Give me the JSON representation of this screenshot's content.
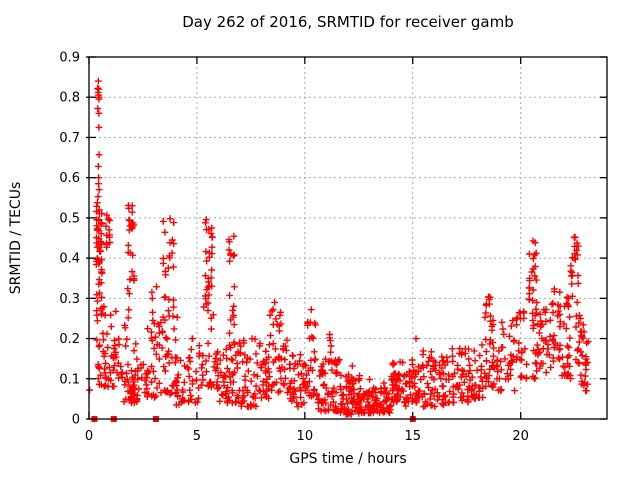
{
  "window": {
    "background": "#ffffff"
  },
  "style": {
    "marker_color": "#ff0000",
    "grid_color": "#a8a8a8",
    "border_color": "#000000",
    "text_color": "#000000"
  },
  "chart_data": {
    "type": "scatter",
    "title": "Day 262 of 2016, SRMTID for receiver gamb",
    "xlabel": "GPS time / hours",
    "ylabel": "SRMTID / TECUs",
    "xlim": [
      0,
      24
    ],
    "ylim": [
      0,
      0.9
    ],
    "grid": true,
    "legend": "none",
    "marker": "plus",
    "x_ticks": [
      0,
      5,
      10,
      15,
      20
    ],
    "y_tick_labels": [
      "0",
      "0.1",
      "0.2",
      "0.3",
      "0.4",
      "0.5",
      "0.6",
      "0.7",
      "0.8",
      "0.9"
    ],
    "y_tick_values": [
      0,
      0.1,
      0.2,
      0.3,
      0.4,
      0.5,
      0.6,
      0.7,
      0.8,
      0.9
    ],
    "seed": 1234567,
    "clusters_format": [
      "x_start_hours",
      "x_end_hours",
      "y_min_tecu",
      "y_max_tecu",
      "n_points",
      "bottom_bias_exponent",
      "n_vertical_strings"
    ],
    "clusters": [
      [
        0.32,
        0.62,
        0.36,
        0.555,
        40,
        1.0,
        3
      ],
      [
        0.32,
        0.62,
        0.15,
        0.36,
        16,
        1.0,
        3
      ],
      [
        0.3,
        0.6,
        0.07,
        0.15,
        8,
        1.0,
        0
      ],
      [
        0.75,
        1.0,
        0.42,
        0.53,
        12,
        1.0,
        2
      ],
      [
        0.6,
        1.25,
        0.08,
        0.28,
        38,
        1.8,
        0
      ],
      [
        1.25,
        1.55,
        0.1,
        0.22,
        10,
        1.3,
        0
      ],
      [
        1.78,
        2.1,
        0.42,
        0.535,
        13,
        1.0,
        2
      ],
      [
        1.75,
        2.15,
        0.26,
        0.42,
        11,
        1.0,
        2
      ],
      [
        1.6,
        2.25,
        0.04,
        0.26,
        45,
        1.8,
        0
      ],
      [
        2.25,
        2.7,
        0.05,
        0.16,
        14,
        1.3,
        0
      ],
      [
        2.7,
        3.3,
        0.05,
        0.25,
        30,
        1.7,
        0
      ],
      [
        2.85,
        3.2,
        0.25,
        0.33,
        4,
        1.0,
        0
      ],
      [
        3.4,
        4.0,
        0.26,
        0.52,
        22,
        1.0,
        3
      ],
      [
        3.3,
        4.1,
        0.06,
        0.26,
        36,
        1.6,
        0
      ],
      [
        4.0,
        4.65,
        0.03,
        0.16,
        26,
        1.5,
        0
      ],
      [
        4.65,
        5.15,
        0.04,
        0.2,
        18,
        1.5,
        0
      ],
      [
        5.35,
        5.75,
        0.28,
        0.5,
        28,
        0.9,
        3
      ],
      [
        5.2,
        5.8,
        0.08,
        0.28,
        24,
        1.5,
        0
      ],
      [
        5.8,
        6.4,
        0.04,
        0.18,
        26,
        1.4,
        0
      ],
      [
        6.45,
        6.78,
        0.2,
        0.47,
        18,
        1.0,
        2
      ],
      [
        6.3,
        7.05,
        0.04,
        0.2,
        38,
        1.6,
        0
      ],
      [
        7.05,
        8.05,
        0.03,
        0.2,
        48,
        1.7,
        0
      ],
      [
        8.05,
        8.35,
        0.05,
        0.18,
        22,
        1.5,
        0
      ],
      [
        8.35,
        8.9,
        0.06,
        0.285,
        30,
        1.4,
        0
      ],
      [
        8.9,
        9.35,
        0.05,
        0.22,
        22,
        1.5,
        0
      ],
      [
        9.35,
        10.05,
        0.03,
        0.16,
        34,
        1.6,
        0
      ],
      [
        10.05,
        10.55,
        0.05,
        0.27,
        28,
        1.8,
        0
      ],
      [
        10.55,
        11.6,
        0.02,
        0.15,
        58,
        1.6,
        0
      ],
      [
        11.05,
        11.3,
        0.14,
        0.21,
        5,
        1.0,
        0
      ],
      [
        11.6,
        12.6,
        0.01,
        0.11,
        68,
        1.5,
        0
      ],
      [
        12.6,
        14.0,
        0.015,
        0.1,
        85,
        1.6,
        0
      ],
      [
        14.0,
        14.6,
        0.04,
        0.145,
        45,
        1.3,
        0
      ],
      [
        14.6,
        14.95,
        0.03,
        0.12,
        18,
        1.4,
        0
      ],
      [
        14.95,
        15.45,
        0.04,
        0.16,
        30,
        1.4,
        0
      ],
      [
        15.45,
        16.5,
        0.03,
        0.17,
        54,
        1.5,
        0
      ],
      [
        16.5,
        17.6,
        0.04,
        0.18,
        54,
        1.4,
        0
      ],
      [
        17.6,
        18.25,
        0.05,
        0.2,
        34,
        1.3,
        0
      ],
      [
        18.3,
        18.65,
        0.08,
        0.31,
        24,
        1.2,
        2
      ],
      [
        18.65,
        19.8,
        0.07,
        0.25,
        52,
        1.4,
        0
      ],
      [
        19.8,
        20.3,
        0.1,
        0.28,
        24,
        1.2,
        0
      ],
      [
        20.35,
        20.75,
        0.27,
        0.445,
        22,
        0.8,
        3
      ],
      [
        20.55,
        21.4,
        0.1,
        0.3,
        48,
        1.4,
        0
      ],
      [
        21.4,
        21.9,
        0.13,
        0.33,
        28,
        1.2,
        2
      ],
      [
        21.9,
        22.35,
        0.1,
        0.32,
        28,
        1.3,
        0
      ],
      [
        22.3,
        22.7,
        0.28,
        0.455,
        22,
        0.7,
        3
      ],
      [
        22.55,
        22.8,
        0.12,
        0.28,
        12,
        1.2,
        0
      ],
      [
        22.78,
        23.15,
        0.07,
        0.25,
        26,
        1.5,
        0
      ]
    ],
    "high_points": [
      [
        0.43,
        0.84
      ],
      [
        0.4,
        0.822
      ],
      [
        0.45,
        0.82
      ],
      [
        0.42,
        0.812
      ],
      [
        0.44,
        0.805
      ],
      [
        0.47,
        0.8
      ],
      [
        0.46,
        0.795
      ],
      [
        0.41,
        0.772
      ],
      [
        0.46,
        0.76
      ],
      [
        0.46,
        0.725
      ],
      [
        0.47,
        0.657
      ],
      [
        0.43,
        0.628
      ],
      [
        0.45,
        0.6
      ],
      [
        0.44,
        0.585
      ],
      [
        0.47,
        0.57
      ],
      [
        0.42,
        0.553
      ],
      [
        0.03,
        0.072
      ],
      [
        2.0,
        0.53
      ],
      [
        4.8,
        0.2
      ],
      [
        8.6,
        0.29
      ],
      [
        10.3,
        0.272
      ],
      [
        15.15,
        0.2
      ],
      [
        12.2,
        0.132
      ],
      [
        11.15,
        0.21
      ]
    ],
    "baseline_square_markers": [
      [
        0.25,
        0
      ],
      [
        1.15,
        0
      ],
      [
        3.1,
        0
      ],
      [
        15.0,
        0
      ]
    ]
  }
}
